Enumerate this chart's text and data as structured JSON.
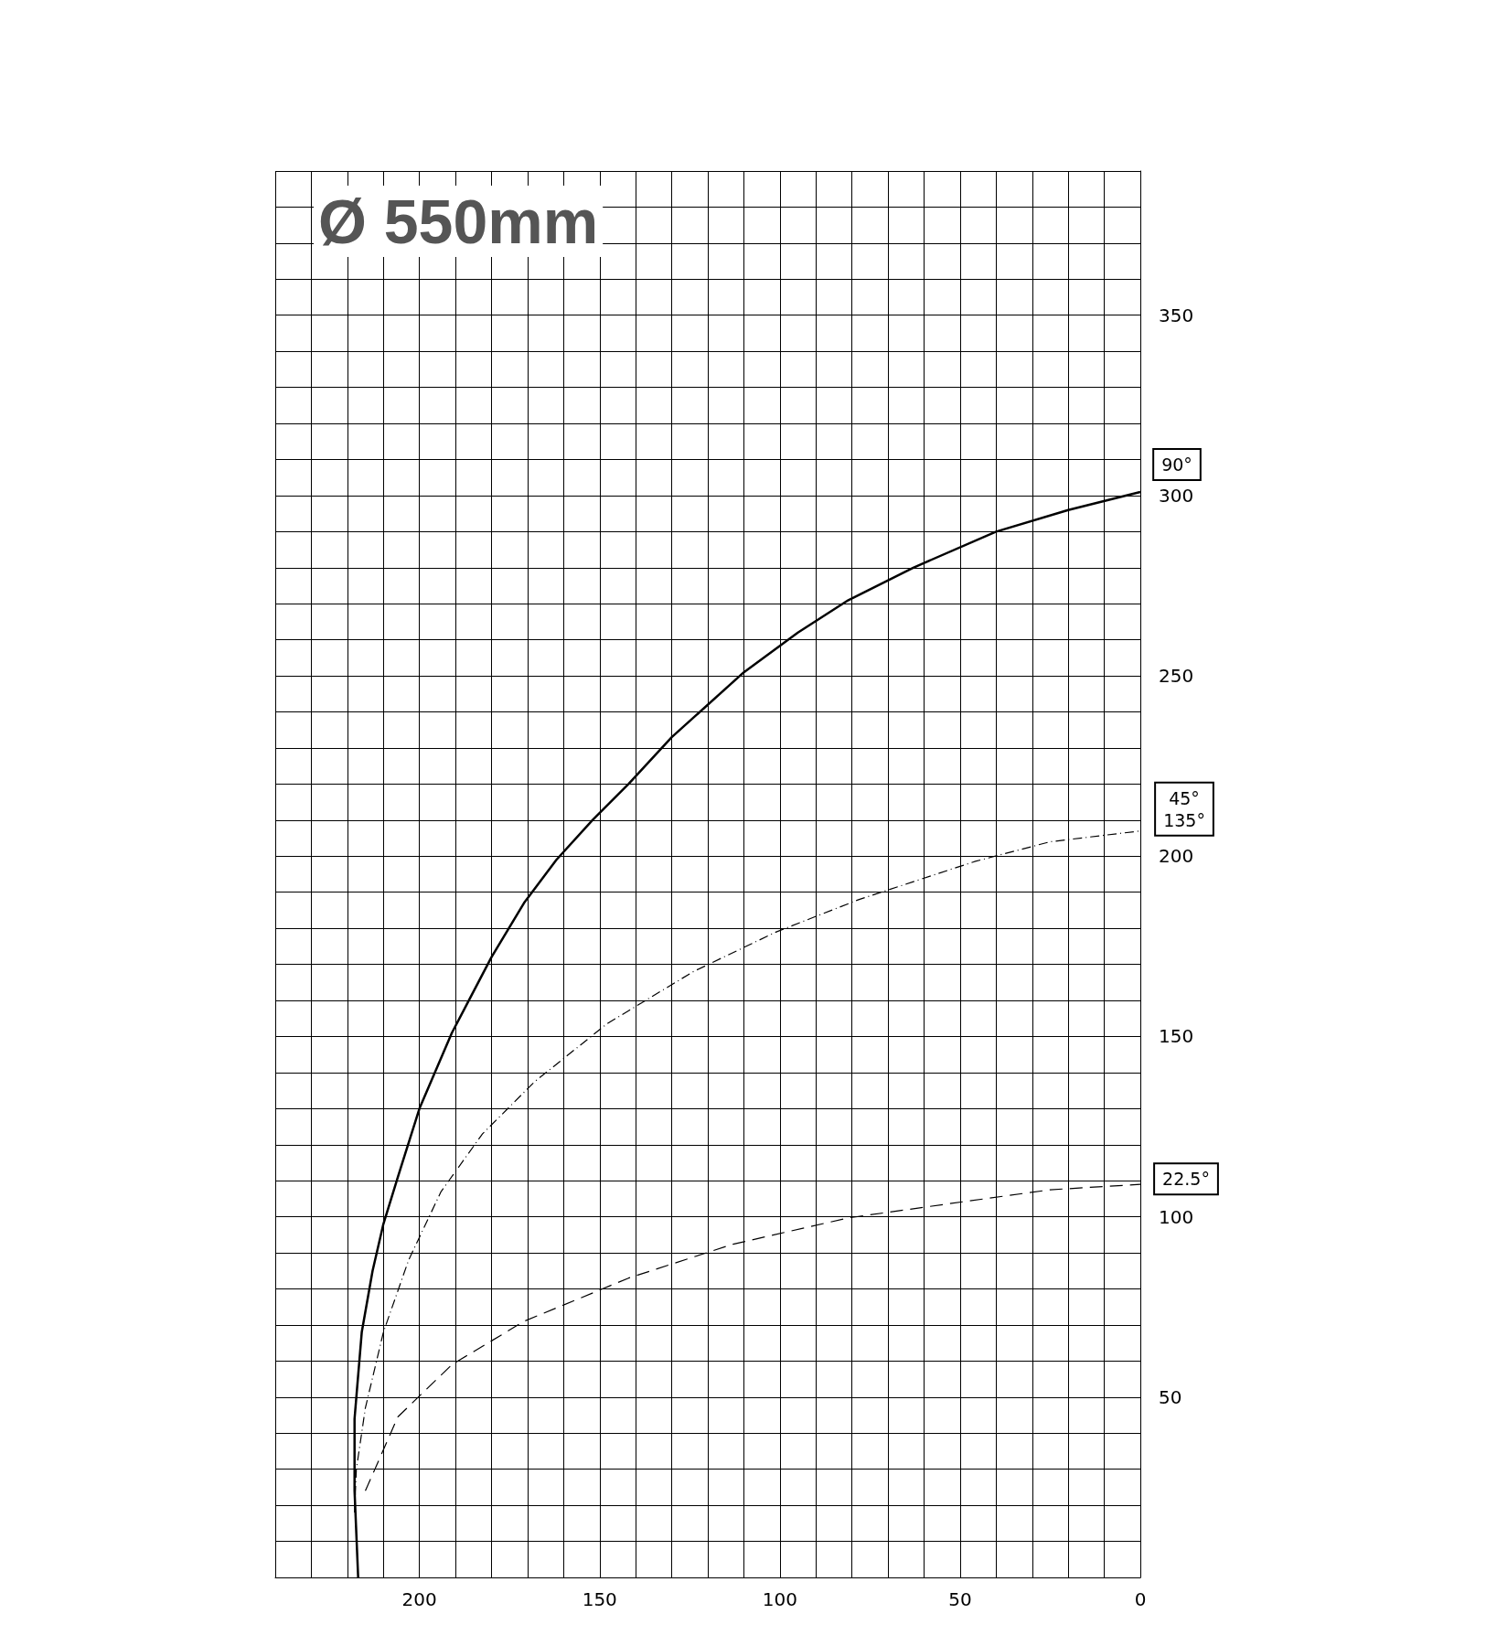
{
  "chart_data": {
    "type": "line",
    "title": "Ø 550mm",
    "xlim": [
      240,
      0
    ],
    "ylim": [
      0,
      390
    ],
    "xticks": [
      {
        "value": 240,
        "label": null
      },
      {
        "value": 230,
        "label": null
      },
      {
        "value": 220,
        "label": null
      },
      {
        "value": 210,
        "label": null
      },
      200,
      {
        "value": 190,
        "label": null
      },
      {
        "value": 180,
        "label": null
      },
      {
        "value": 170,
        "label": null
      },
      {
        "value": 160,
        "label": null
      },
      150,
      {
        "value": 140,
        "label": null
      },
      {
        "value": 130,
        "label": null
      },
      {
        "value": 120,
        "label": null
      },
      {
        "value": 110,
        "label": null
      },
      100,
      {
        "value": 90,
        "label": null
      },
      {
        "value": 80,
        "label": null
      },
      {
        "value": 70,
        "label": null
      },
      {
        "value": 60,
        "label": null
      },
      50,
      {
        "value": 40,
        "label": null
      },
      {
        "value": 30,
        "label": null
      },
      {
        "value": 20,
        "label": null
      },
      {
        "value": 10,
        "label": null
      },
      0
    ],
    "yticks": [
      {
        "value": 0,
        "label": null
      },
      {
        "value": 10,
        "label": null
      },
      {
        "value": 20,
        "label": null
      },
      {
        "value": 30,
        "label": null
      },
      {
        "value": 40,
        "label": null
      },
      50,
      {
        "value": 60,
        "label": null
      },
      {
        "value": 70,
        "label": null
      },
      {
        "value": 80,
        "label": null
      },
      {
        "value": 90,
        "label": null
      },
      100,
      {
        "value": 110,
        "label": null
      },
      {
        "value": 120,
        "label": null
      },
      {
        "value": 130,
        "label": null
      },
      {
        "value": 140,
        "label": null
      },
      150,
      {
        "value": 160,
        "label": null
      },
      {
        "value": 170,
        "label": null
      },
      {
        "value": 180,
        "label": null
      },
      {
        "value": 190,
        "label": null
      },
      200,
      {
        "value": 210,
        "label": null
      },
      {
        "value": 220,
        "label": null
      },
      {
        "value": 230,
        "label": null
      },
      {
        "value": 240,
        "label": null
      },
      250,
      {
        "value": 260,
        "label": null
      },
      {
        "value": 270,
        "label": null
      },
      {
        "value": 280,
        "label": null
      },
      {
        "value": 290,
        "label": null
      },
      300,
      {
        "value": 310,
        "label": null
      },
      {
        "value": 320,
        "label": null
      },
      {
        "value": 330,
        "label": null
      },
      {
        "value": 340,
        "label": null
      },
      350,
      {
        "value": 360,
        "label": null
      },
      {
        "value": 370,
        "label": null
      },
      {
        "value": 380,
        "label": null
      },
      {
        "value": 390,
        "label": null
      }
    ],
    "grid": true,
    "marker": "none",
    "legend": false,
    "series": [
      {
        "name": "90°",
        "color": "#000000",
        "line_style": "solid",
        "x": [
          217,
          218,
          218,
          216,
          213,
          210,
          206,
          200,
          191,
          180,
          171,
          162,
          152,
          142,
          130,
          110,
          95,
          81,
          63,
          40,
          20,
          0
        ],
        "values": [
          0,
          24,
          44,
          68,
          85,
          98,
          111,
          130,
          151,
          172,
          187,
          199,
          210,
          220,
          233,
          251,
          262,
          271,
          280,
          290,
          296,
          301
        ]
      },
      {
        "name": "45°\n135°",
        "color": "#000000",
        "line_style": "dotted",
        "x": [
          218,
          217.5,
          215,
          210,
          203,
          194,
          182.5,
          168,
          148,
          124,
          101,
          78,
          46,
          25,
          0
        ],
        "values": [
          18,
          30,
          47,
          68,
          88,
          107,
          123,
          137.5,
          153.5,
          168,
          179,
          188,
          198.5,
          204,
          207
        ]
      },
      {
        "name": "22.5°",
        "color": "#000000",
        "line_style": "dashed",
        "x": [
          215,
          206,
          191,
          171,
          142,
          113,
          81,
          54,
          25,
          0
        ],
        "values": [
          24,
          44.5,
          59,
          71,
          83,
          92.4,
          99.7,
          103.5,
          107.5,
          109
        ]
      }
    ]
  }
}
